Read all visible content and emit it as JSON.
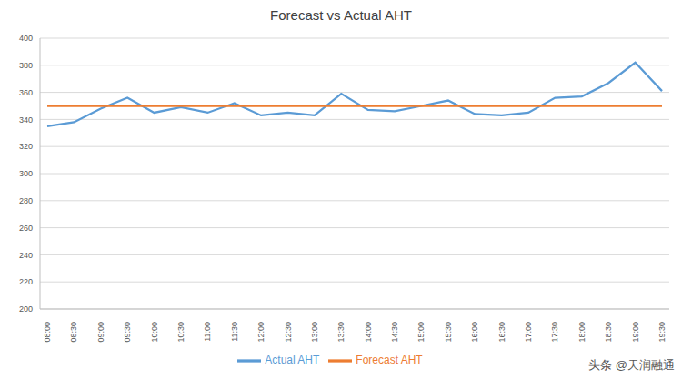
{
  "chart_data": {
    "type": "line",
    "title": "Forecast vs Actual AHT",
    "categories": [
      "08:00",
      "08:30",
      "09:00",
      "09:30",
      "10:00",
      "10:30",
      "11:00",
      "11:30",
      "12:00",
      "12:30",
      "13:00",
      "13:30",
      "14:00",
      "14:30",
      "15:00",
      "15:30",
      "16:00",
      "16:30",
      "17:00",
      "17:30",
      "18:00",
      "18:30",
      "19:00",
      "19:30"
    ],
    "series": [
      {
        "name": "Actual AHT",
        "color": "#5b9bd5",
        "values": [
          335,
          338,
          348,
          356,
          345,
          349,
          345,
          352,
          343,
          345,
          343,
          359,
          347,
          346,
          350,
          354,
          344,
          343,
          345,
          356,
          357,
          367,
          382,
          361
        ]
      },
      {
        "name": "Forecast AHT",
        "color": "#ed7d31",
        "values": [
          350,
          350,
          350,
          350,
          350,
          350,
          350,
          350,
          350,
          350,
          350,
          350,
          350,
          350,
          350,
          350,
          350,
          350,
          350,
          350,
          350,
          350,
          350,
          350
        ]
      }
    ],
    "ylim": [
      200,
      400
    ],
    "yticks": [
      200,
      220,
      240,
      260,
      280,
      300,
      320,
      340,
      360,
      380,
      400
    ],
    "grid": true,
    "legend": "bottom",
    "annotations": [
      "头条 @天润融通"
    ]
  }
}
